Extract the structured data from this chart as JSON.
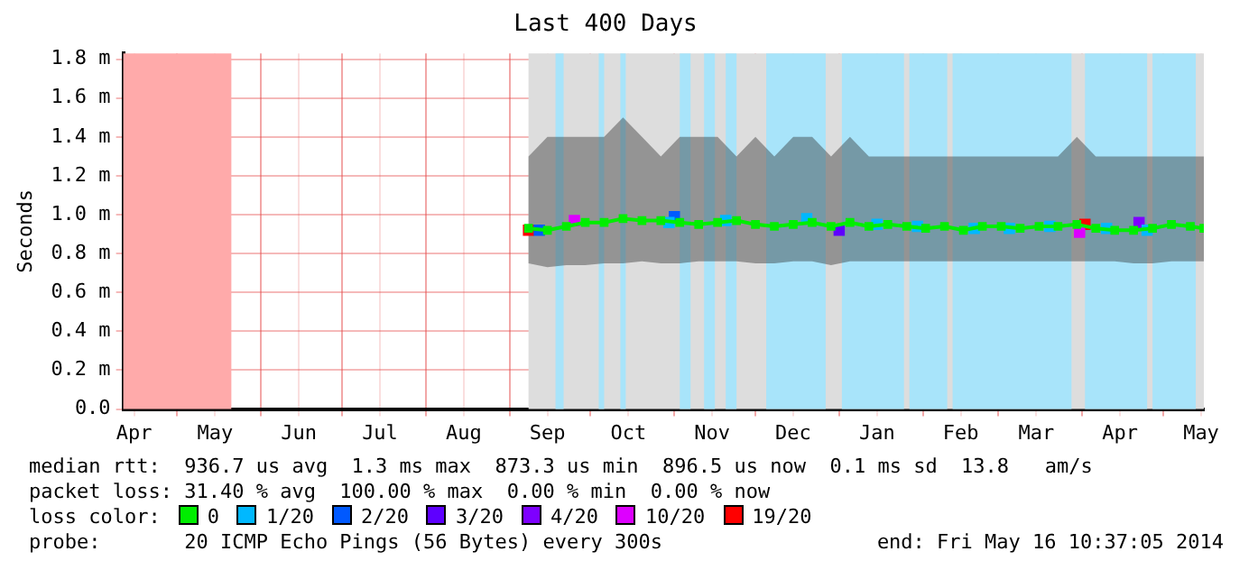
{
  "chart_data": {
    "type": "line",
    "title": "Last 400 Days",
    "ylabel": "Seconds",
    "legend_title": "loss color:",
    "legend": "bottom",
    "grid": true,
    "xlim": [
      "2013-04-11",
      "2014-05-16"
    ],
    "ylim": [
      0,
      1.83
    ],
    "xticks": [
      {
        "value": "2013-04-15",
        "label": "Apr"
      },
      {
        "value": "2013-05-01",
        "label": null
      },
      {
        "value": "2013-05-15",
        "label": "May"
      },
      {
        "value": "2013-06-01",
        "label": null
      },
      {
        "value": "2013-06-15",
        "label": "Jun"
      },
      {
        "value": "2013-07-01",
        "label": null
      },
      {
        "value": "2013-07-15",
        "label": "Jul"
      },
      {
        "value": "2013-08-01",
        "label": null
      },
      {
        "value": "2013-08-15",
        "label": "Aug"
      },
      {
        "value": "2013-09-01",
        "label": null
      },
      {
        "value": "2013-09-15",
        "label": "Sep"
      },
      {
        "value": "2013-10-01",
        "label": null
      },
      {
        "value": "2013-10-15",
        "label": "Oct"
      },
      {
        "value": "2013-11-01",
        "label": null
      },
      {
        "value": "2013-11-15",
        "label": "Nov"
      },
      {
        "value": "2013-12-01",
        "label": null
      },
      {
        "value": "2013-12-15",
        "label": "Dec"
      },
      {
        "value": "2014-01-01",
        "label": null
      },
      {
        "value": "2014-01-15",
        "label": "Jan"
      },
      {
        "value": "2014-02-01",
        "label": null
      },
      {
        "value": "2014-02-15",
        "label": "Feb"
      },
      {
        "value": "2014-03-01",
        "label": null
      },
      {
        "value": "2014-03-15",
        "label": "Mar"
      },
      {
        "value": "2014-04-01",
        "label": null
      },
      {
        "value": "2014-04-15",
        "label": "Apr"
      },
      {
        "value": "2014-05-01",
        "label": null
      },
      {
        "value": "2014-05-15",
        "label": "May"
      }
    ],
    "yticks": [
      {
        "value": 0,
        "label": "0.0"
      },
      {
        "value": 0.2,
        "label": "0.2 m"
      },
      {
        "value": 0.4,
        "label": "0.4 m"
      },
      {
        "value": 0.6,
        "label": "0.6 m"
      },
      {
        "value": 0.8,
        "label": "0.8 m"
      },
      {
        "value": 1.0,
        "label": "1.0 m"
      },
      {
        "value": 1.2,
        "label": "1.2 m"
      },
      {
        "value": 1.4,
        "label": "1.4 m"
      },
      {
        "value": 1.6,
        "label": "1.6 m"
      },
      {
        "value": 1.8,
        "label": "1.8 m"
      }
    ],
    "bands": [
      {
        "axis": "x",
        "from": "2013-04-11",
        "to": "2013-05-21",
        "color": "#ffaaaa"
      },
      {
        "axis": "x",
        "from": "2013-09-08",
        "to": "2014-05-16",
        "color": "#dddddd"
      },
      {
        "axis": "x",
        "from": "2013-09-18",
        "to": "2013-09-21",
        "color": "#a8e4fa"
      },
      {
        "axis": "x",
        "from": "2013-10-04",
        "to": "2013-10-06",
        "color": "#a8e4fa"
      },
      {
        "axis": "x",
        "from": "2013-10-12",
        "to": "2013-10-14",
        "color": "#a8e4fa"
      },
      {
        "axis": "x",
        "from": "2013-11-03",
        "to": "2013-11-07",
        "color": "#a8e4fa"
      },
      {
        "axis": "x",
        "from": "2013-11-12",
        "to": "2013-11-16",
        "color": "#a8e4fa"
      },
      {
        "axis": "x",
        "from": "2013-11-20",
        "to": "2013-11-24",
        "color": "#a8e4fa"
      },
      {
        "axis": "x",
        "from": "2013-12-05",
        "to": "2013-12-27",
        "color": "#a8e4fa"
      },
      {
        "axis": "x",
        "from": "2014-01-02",
        "to": "2014-01-25",
        "color": "#a8e4fa"
      },
      {
        "axis": "x",
        "from": "2014-01-27",
        "to": "2014-02-10",
        "color": "#a8e4fa"
      },
      {
        "axis": "x",
        "from": "2014-02-12",
        "to": "2014-03-28",
        "color": "#a8e4fa"
      },
      {
        "axis": "x",
        "from": "2014-04-02",
        "to": "2014-04-25",
        "color": "#a8e4fa"
      },
      {
        "axis": "x",
        "from": "2014-04-27",
        "to": "2014-05-13",
        "color": "#a8e4fa"
      }
    ],
    "series": [
      {
        "name": "0",
        "color": "#00ee00",
        "marker": "square",
        "x": [
          "2013-09-08",
          "2013-09-15",
          "2013-09-22",
          "2013-09-29",
          "2013-10-06",
          "2013-10-13",
          "2013-10-20",
          "2013-10-27",
          "2013-11-03",
          "2013-11-10",
          "2013-11-17",
          "2013-11-24",
          "2013-12-01",
          "2013-12-08",
          "2013-12-15",
          "2013-12-22",
          "2013-12-29",
          "2014-01-05",
          "2014-01-12",
          "2014-01-19",
          "2014-01-26",
          "2014-02-02",
          "2014-02-09",
          "2014-02-16",
          "2014-02-23",
          "2014-03-02",
          "2014-03-09",
          "2014-03-16",
          "2014-03-23",
          "2014-03-30",
          "2014-04-06",
          "2014-04-13",
          "2014-04-20",
          "2014-04-27",
          "2014-05-04",
          "2014-05-11",
          "2014-05-16"
        ],
        "values": [
          0.93,
          0.92,
          0.94,
          0.96,
          0.96,
          0.98,
          0.97,
          0.97,
          0.96,
          0.95,
          0.96,
          0.97,
          0.95,
          0.94,
          0.95,
          0.96,
          0.94,
          0.96,
          0.94,
          0.95,
          0.94,
          0.93,
          0.94,
          0.92,
          0.94,
          0.94,
          0.93,
          0.94,
          0.94,
          0.95,
          0.93,
          0.92,
          0.92,
          0.93,
          0.95,
          0.94,
          0.93
        ],
        "lower": [
          0.75,
          0.73,
          0.74,
          0.74,
          0.75,
          0.75,
          0.76,
          0.75,
          0.75,
          0.76,
          0.76,
          0.76,
          0.75,
          0.75,
          0.76,
          0.76,
          0.74,
          0.76,
          0.76,
          0.76,
          0.76,
          0.76,
          0.76,
          0.76,
          0.76,
          0.76,
          0.76,
          0.76,
          0.76,
          0.76,
          0.76,
          0.76,
          0.75,
          0.75,
          0.76,
          0.76,
          0.76
        ],
        "upper": [
          1.3,
          1.4,
          1.4,
          1.4,
          1.4,
          1.5,
          1.4,
          1.3,
          1.4,
          1.4,
          1.4,
          1.3,
          1.4,
          1.3,
          1.4,
          1.4,
          1.3,
          1.4,
          1.3,
          1.3,
          1.3,
          1.3,
          1.3,
          1.3,
          1.3,
          1.3,
          1.3,
          1.3,
          1.3,
          1.4,
          1.3,
          1.3,
          1.3,
          1.3,
          1.3,
          1.3,
          1.3
        ]
      },
      {
        "name": "1/20",
        "type": "scatter",
        "color": "#00b8ff",
        "x": [
          "2013-10-30",
          "2013-11-20",
          "2013-12-20",
          "2014-01-15",
          "2014-01-30",
          "2014-02-20",
          "2014-03-05",
          "2014-03-20",
          "2014-04-10",
          "2014-04-25"
        ],
        "values": [
          0.96,
          0.97,
          0.98,
          0.95,
          0.94,
          0.93,
          0.93,
          0.94,
          0.93,
          0.92
        ]
      },
      {
        "name": "2/20",
        "type": "scatter",
        "color": "#0059ff",
        "x": [
          "2013-09-12",
          "2013-11-01"
        ],
        "values": [
          0.92,
          0.99
        ]
      },
      {
        "name": "3/20",
        "type": "scatter",
        "color": "#5e00ff",
        "x": [
          "2014-01-01"
        ],
        "values": [
          0.92
        ]
      },
      {
        "name": "4/20",
        "type": "scatter",
        "color": "#7e00ff",
        "x": [
          "2014-04-22"
        ],
        "values": [
          0.96
        ]
      },
      {
        "name": "10/20",
        "type": "scatter",
        "color": "#dd00ff",
        "x": [
          "2013-09-25",
          "2014-03-31"
        ],
        "values": [
          0.97,
          0.91
        ]
      },
      {
        "name": "19/20",
        "type": "scatter",
        "color": "#ff0000",
        "x": [
          "2013-09-08",
          "2014-04-02"
        ],
        "values": [
          0.92,
          0.95
        ]
      }
    ],
    "annotations": [
      "median rtt:  936.7 us avg  1.3 ms max  873.3 us min  896.5 us now  0.1 ms sd  13.8   am/s",
      "packet loss: 31.40 % avg  100.00 % max  0.00 % min  0.00 % now",
      "probe:       20 ICMP Echo Pings (56 Bytes) every 300s",
      "end: Fri May 16 10:37:05 2014"
    ]
  }
}
